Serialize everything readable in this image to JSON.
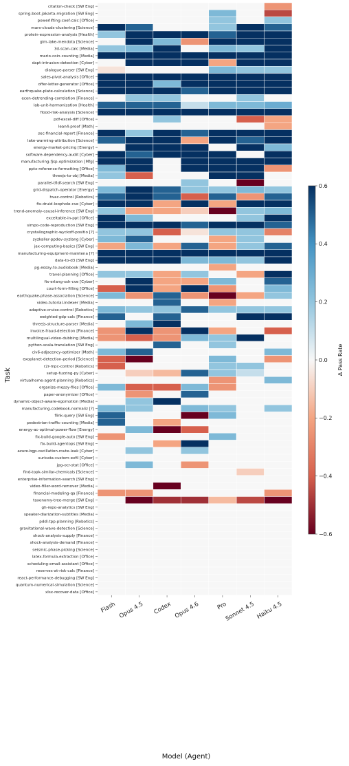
{
  "chart_data": {
    "type": "heatmap",
    "xlabel": "Model (Agent)",
    "ylabel": "Task",
    "colorbar_label": "Δ Pass Rate",
    "colorbar_ticks": [
      "0.6",
      "0.4",
      "0.2",
      "0.0",
      "−0.2",
      "−0.4",
      "−0.6"
    ],
    "vmin": -0.6,
    "vmax": 0.6,
    "colormap": [
      "#67001f",
      "#d6604d",
      "#f4a582",
      "#f7f7f7",
      "#92c5de",
      "#4393c3",
      "#053061"
    ],
    "models": [
      "Flash",
      "Opus 4.5",
      "Codex",
      "Opus 4.6",
      "Pro",
      "Sonnet 4.5",
      "Haiku 4.5"
    ],
    "tasks": [
      "citation-check [SW Eng]",
      "spring-boot-jakarta-migration [SW Eng]",
      "powerlifting-coef-calc [Office]",
      "mars-clouds-clustering [Science]",
      "protein-expression-analysis [Health]",
      "glm-lake-mendota [Science]",
      "3d-scan-calc [Media]",
      "mario-coin-counting [Media]",
      "dapt-intrusion-detection [Cyber]",
      "dialogue-parser [SW Eng]",
      "sales-pivot-analysis [Office]",
      "offer-letter-generator [Office]",
      "earthquake-plate-calculation [Science]",
      "econ-detrending-correlation [Finance]",
      "lab-unit-harmonization [Health]",
      "flood-risk-analysis [Science]",
      "pdf-excel-diff [Office]",
      "lean4-proof [Math]",
      "sec-financial-report [Finance]",
      "lake-warming-attribution [Science]",
      "energy-market-pricing [Energy]",
      "software-dependency-audit [Cyber]",
      "manufacturing-fjsp-optimization [Mfg]",
      "pptx-reference-formatting [Office]",
      "threejs-to-obj [Media]",
      "parallel-tfidf-search [SW Eng]",
      "grid-dispatch-operator [Energy]",
      "hvac-control [Robotics]",
      "fix-druid-loophole-cve [Cyber]",
      "trend-anomaly-causal-inference [SW Eng]",
      "exceltable-in-ppt [Office]",
      "simpo-code-reproduction [SW Eng]",
      "crystallographic-wyckoff-positio [?]",
      "syzkaller-ppdev-syzlang [Cyber]",
      "jax-computing-basics [SW Eng]",
      "manufacturing-equipment-maintena [?]",
      "data-to-d3 [SW Eng]",
      "pg-essay-to-audiobook [Media]",
      "travel-planning [Office]",
      "fix-erlang-ssh-cve [Cyber]",
      "court-form-filling [Office]",
      "earthquake-phase-association [Science]",
      "video-tutorial-indexer [Media]",
      "adaptive-cruise-control [Robotics]",
      "weighted-gdp-calc [Finance]",
      "threejs-structure-parser [Media]",
      "invoice-fraud-detection [Finance]",
      "multilingual-video-dubbing [Media]",
      "python-scala-translation [SW Eng]",
      "civ6-adjacency-optimizer [Math]",
      "exoplanet-detection-period [Science]",
      "r2r-mpc-control [Robotics]",
      "setup-fuzzing-py [Cyber]",
      "virtualhome-agent-planning [Robotics]",
      "organize-messy-files [Office]",
      "paper-anonymizer [Office]",
      "dynamic-object-aware-egomotion [Media]",
      "manufacturing-codebook-normaliz [?]",
      "flink-query [SW Eng]",
      "pedestrian-traffic-counting [Media]",
      "energy-ac-optimal-power-flow [Energy]",
      "fix-build-google-auto [SW Eng]",
      "fix-build-agentops [SW Eng]",
      "azure-bgp-oscillation-route-leak [Cyber]",
      "suricata-custom-exfil [Cyber]",
      "jpg-ocr-stat [Office]",
      "find-topk-similar-chemicals [Science]",
      "enterprise-information-search [SW Eng]",
      "video-filler-word-remover [Media]",
      "financial-modeling-qa [Finance]",
      "taxonomy-tree-merge [SW Eng]",
      "gh-repo-analytics [SW Eng]",
      "speaker-diarization-subtitles [Media]",
      "pddl-tpp-planning [Robotics]",
      "gravitational-wave-detection [Science]",
      "shock-analysis-supply [Finance]",
      "shock-analysis-demand [Finance]",
      "seismic-phase-picking [Science]",
      "latex-formula-extraction [Office]",
      "scheduling-email-assistant [Office]",
      "reserves-at-risk-calc [Finance]",
      "react-performance-debugging [SW Eng]",
      "quantum-numerical-simulation [Science]",
      "xlsx-recover-data [Office]"
    ],
    "values": [
      [
        0,
        0,
        0,
        0,
        0,
        0,
        -0.25
      ],
      [
        0,
        0,
        0,
        0,
        0.25,
        0,
        -0.45
      ],
      [
        0,
        0,
        0,
        0,
        0.2,
        0,
        0.2
      ],
      [
        0.6,
        0.5,
        0,
        0,
        0.2,
        0.6,
        0.5
      ],
      [
        0.2,
        0.6,
        0.6,
        0.6,
        0.5,
        0.6,
        0.6
      ],
      [
        0,
        0.6,
        0.25,
        -0.25,
        0.6,
        0.6,
        0.6
      ],
      [
        0.2,
        0.25,
        0.6,
        0,
        0.25,
        0.2,
        0.6
      ],
      [
        0.6,
        0.6,
        0.6,
        0.6,
        0.6,
        0.6,
        0.6
      ],
      [
        0,
        0.6,
        0.6,
        0.6,
        -0.2,
        0.6,
        0.6
      ],
      [
        -0.05,
        0,
        0,
        0,
        0.25,
        0.2,
        0.2
      ],
      [
        0.6,
        0.6,
        0.6,
        0.6,
        0.6,
        0.6,
        0.6
      ],
      [
        0.6,
        0.6,
        0.25,
        0.6,
        0.6,
        0.6,
        0.6
      ],
      [
        0.6,
        0.6,
        0.6,
        0.5,
        0.6,
        0.6,
        0.6
      ],
      [
        0,
        0.2,
        0.2,
        0,
        0,
        0.2,
        0
      ],
      [
        0.5,
        0.5,
        0.5,
        0.1,
        0.25,
        0.25,
        0.3
      ],
      [
        0.6,
        0.6,
        0.6,
        0.6,
        0.6,
        0.6,
        0.6
      ],
      [
        0,
        0,
        0.2,
        0,
        0,
        -0.4,
        -0.2
      ],
      [
        0,
        0,
        0,
        0,
        0,
        0,
        -0.2
      ],
      [
        0.6,
        0.2,
        0.6,
        0.5,
        0.6,
        0.6,
        0.6
      ],
      [
        0.5,
        0.6,
        0.6,
        -0.2,
        0.6,
        0.5,
        0.6
      ],
      [
        0,
        0.6,
        0.6,
        0.6,
        0,
        0.6,
        0.25
      ],
      [
        0.6,
        0.5,
        0.6,
        0.6,
        0.6,
        0,
        0.6
      ],
      [
        0.6,
        0.6,
        0,
        0.6,
        0.6,
        0.6,
        0.6
      ],
      [
        0.25,
        0.6,
        0,
        0.6,
        0.6,
        0.6,
        -0.25
      ],
      [
        0.2,
        -0.4,
        0,
        0,
        0.6,
        0.6,
        0
      ],
      [
        0,
        0,
        0,
        0.2,
        0,
        -0.6,
        0
      ],
      [
        0.25,
        0.6,
        0.5,
        0.2,
        0.2,
        0.25,
        0.2
      ],
      [
        0.5,
        0.6,
        0.5,
        -0.4,
        0.5,
        -0.25,
        0.5
      ],
      [
        0.6,
        0.6,
        -0.2,
        0.6,
        -0.2,
        0.6,
        0.6
      ],
      [
        0.2,
        -0.2,
        -0.2,
        -0.1,
        -0.6,
        0.2,
        0.25
      ],
      [
        0.6,
        0.25,
        0,
        0,
        0,
        0.2,
        0.6
      ],
      [
        0.6,
        0.6,
        0.6,
        0.5,
        0.6,
        0.6,
        0.5
      ],
      [
        0.2,
        0.2,
        -0.4,
        -0.05,
        0.2,
        0.2,
        -0.3
      ],
      [
        0.25,
        0.5,
        0,
        0,
        -0.2,
        0.2,
        0
      ],
      [
        -0.2,
        0.25,
        -0.2,
        0.5,
        -0.2,
        0.2,
        0.5
      ],
      [
        0.6,
        0.6,
        0.6,
        0.6,
        0.6,
        0.6,
        0.6
      ],
      [
        0.6,
        0.6,
        0.6,
        0.25,
        0.25,
        0.2,
        0.6
      ],
      [
        0,
        0,
        0,
        0,
        -0.2,
        0,
        0
      ],
      [
        0.2,
        0.2,
        -0.2,
        0.2,
        0,
        -0.2,
        0.6
      ],
      [
        0,
        0.6,
        -0.2,
        -0.2,
        0.25,
        0,
        0.5
      ],
      [
        -0.4,
        0.6,
        -0.2,
        0.6,
        -0.25,
        0,
        0.25
      ],
      [
        0.25,
        -0.25,
        0.5,
        -0.25,
        -0.6,
        -0.2,
        0.2
      ],
      [
        0,
        0,
        0.5,
        0,
        -0.2,
        0,
        0
      ],
      [
        0.25,
        0.2,
        0.2,
        0.5,
        0.2,
        0.2,
        0.2
      ],
      [
        0.5,
        0,
        0.5,
        0,
        0,
        0.6,
        0.6
      ],
      [
        0,
        0.25,
        0.6,
        0,
        0,
        0,
        0
      ],
      [
        -0.25,
        0.6,
        -0.25,
        0.6,
        -0.2,
        0,
        -0.4
      ],
      [
        -0.25,
        -0.4,
        -0.25,
        0.25,
        0.2,
        0.6,
        0
      ],
      [
        0,
        0,
        0.5,
        0,
        0.2,
        0,
        0
      ],
      [
        0.25,
        0.5,
        0,
        0,
        0,
        0,
        0.25
      ],
      [
        -0.4,
        -0.6,
        0,
        0,
        0.25,
        0,
        -0.25
      ],
      [
        -0.4,
        0,
        0,
        0,
        0.2,
        0.2,
        0
      ],
      [
        0,
        -0.1,
        -0.15,
        0.5,
        0.2,
        0.1,
        0
      ],
      [
        0,
        0,
        0,
        0,
        -0.25,
        0,
        0.25
      ],
      [
        0.25,
        -0.4,
        -0.4,
        0.25,
        -0.25,
        0,
        0
      ],
      [
        0,
        -0.25,
        0,
        0.5,
        0,
        0,
        0
      ],
      [
        0,
        0.2,
        0.6,
        0,
        0,
        0,
        0
      ],
      [
        0.25,
        0.2,
        0,
        0.25,
        0.2,
        0,
        0.2
      ],
      [
        0.5,
        0,
        0,
        -0.6,
        0.25,
        0,
        0
      ],
      [
        0.5,
        0,
        -0.2,
        0,
        0,
        0,
        0
      ],
      [
        0,
        0.25,
        -0.6,
        -0.4,
        0,
        0,
        0
      ],
      [
        -0.25,
        0,
        0,
        0,
        0.25,
        0,
        0
      ],
      [
        0,
        0,
        -0.2,
        0.6,
        0,
        0,
        0
      ],
      [
        0,
        0.2,
        0,
        0.2,
        0,
        0,
        0
      ],
      [
        0,
        0,
        0,
        0,
        0,
        0,
        0
      ],
      [
        0,
        0.25,
        0,
        -0.25,
        0,
        0,
        0
      ],
      [
        0,
        0,
        0,
        0,
        0,
        -0.1,
        0
      ],
      [
        0,
        0,
        0,
        0,
        0,
        0,
        0
      ],
      [
        0,
        0,
        -0.6,
        0,
        0,
        0,
        0
      ],
      [
        -0.25,
        -0.25,
        0,
        0,
        0,
        0,
        -0.25
      ],
      [
        0,
        -0.6,
        -0.5,
        -0.5,
        -0.15,
        -0.45,
        -0.6
      ],
      [
        0,
        0,
        0,
        0,
        0,
        0,
        0
      ],
      [
        0,
        0,
        0,
        0,
        0,
        0,
        0
      ],
      [
        0,
        0,
        0,
        0,
        0,
        0,
        0
      ],
      [
        0,
        0,
        0,
        0,
        0,
        0,
        0
      ],
      [
        0,
        0,
        0,
        0,
        0,
        0,
        0
      ],
      [
        0,
        0,
        0,
        0,
        0,
        0,
        0
      ],
      [
        0,
        0,
        0,
        0,
        0,
        0,
        0
      ],
      [
        0,
        0,
        0,
        0,
        0,
        0,
        0
      ],
      [
        0,
        0,
        0,
        0,
        0,
        0,
        0
      ],
      [
        0,
        0,
        0,
        0,
        0,
        0,
        0
      ],
      [
        0,
        0,
        0,
        0,
        0,
        0,
        0
      ],
      [
        0,
        0,
        0,
        0,
        0,
        0,
        0
      ],
      [
        0,
        0,
        0,
        0,
        0,
        0,
        0
      ]
    ]
  }
}
